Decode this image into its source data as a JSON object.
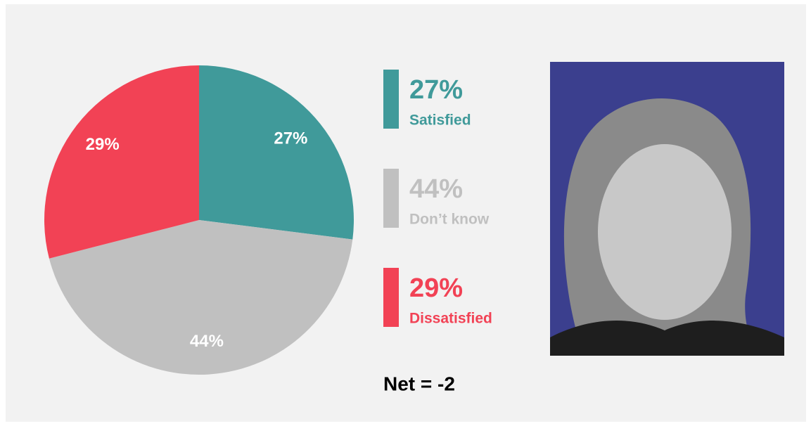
{
  "chart_data": {
    "type": "pie",
    "categories": [
      "Satisfied",
      "Don’t know",
      "Dissatisfied"
    ],
    "values": [
      27,
      44,
      29
    ],
    "value_labels": [
      "27%",
      "44%",
      "29%"
    ],
    "colors": [
      "#409a9a",
      "#c0c0c0",
      "#f24255"
    ],
    "annotation": "Net = -2"
  }
}
